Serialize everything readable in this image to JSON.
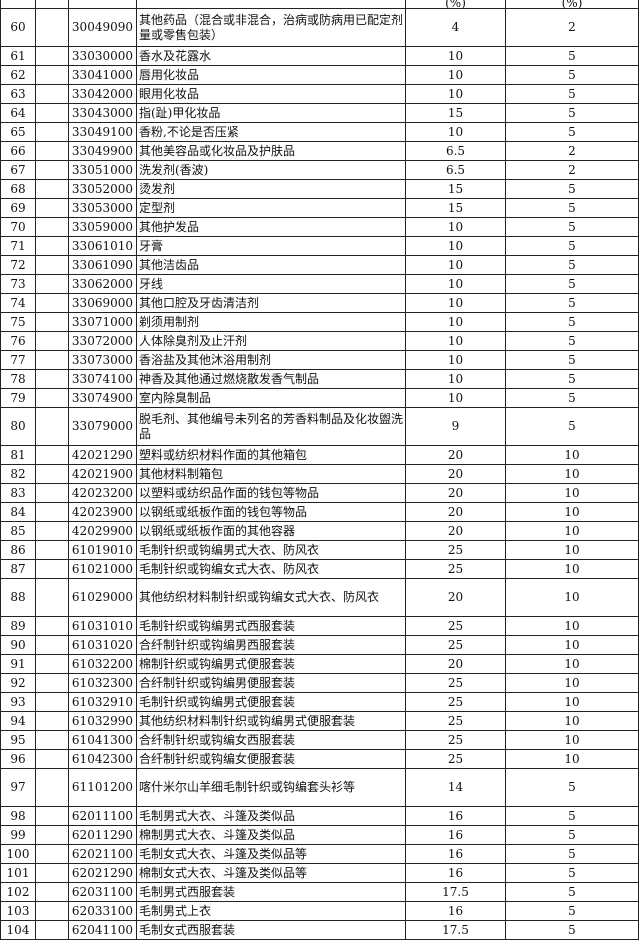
{
  "header": {
    "rate1_unit": "(%)",
    "rate2_unit": "(%)"
  },
  "rows": [
    {
      "idx": "60",
      "code": "30049090",
      "name": "其他药品（混合或非混合，治病或防病用已配定剂量或零售包装）",
      "rate1": "4",
      "rate2": "2",
      "tall": true
    },
    {
      "idx": "61",
      "code": "33030000",
      "name": "香水及花露水",
      "rate1": "10",
      "rate2": "5"
    },
    {
      "idx": "62",
      "code": "33041000",
      "name": "唇用化妆品",
      "rate1": "10",
      "rate2": "5"
    },
    {
      "idx": "63",
      "code": "33042000",
      "name": "眼用化妆品",
      "rate1": "10",
      "rate2": "5"
    },
    {
      "idx": "64",
      "code": "33043000",
      "name": "指(趾)甲化妆品",
      "rate1": "15",
      "rate2": "5"
    },
    {
      "idx": "65",
      "code": "33049100",
      "name": "香粉,不论是否压紧",
      "rate1": "10",
      "rate2": "5"
    },
    {
      "idx": "66",
      "code": "33049900",
      "name": "其他美容品或化妆品及护肤品",
      "rate1": "6.5",
      "rate2": "2"
    },
    {
      "idx": "67",
      "code": "33051000",
      "name": "洗发剂(香波)",
      "rate1": "6.5",
      "rate2": "2"
    },
    {
      "idx": "68",
      "code": "33052000",
      "name": "烫发剂",
      "rate1": "15",
      "rate2": "5"
    },
    {
      "idx": "69",
      "code": "33053000",
      "name": "定型剂",
      "rate1": "15",
      "rate2": "5"
    },
    {
      "idx": "70",
      "code": "33059000",
      "name": "其他护发品",
      "rate1": "10",
      "rate2": "5"
    },
    {
      "idx": "71",
      "code": "33061010",
      "name": "牙膏",
      "rate1": "10",
      "rate2": "5"
    },
    {
      "idx": "72",
      "code": "33061090",
      "name": "其他洁齿品",
      "rate1": "10",
      "rate2": "5"
    },
    {
      "idx": "73",
      "code": "33062000",
      "name": "牙线",
      "rate1": "10",
      "rate2": "5"
    },
    {
      "idx": "74",
      "code": "33069000",
      "name": "其他口腔及牙齿清洁剂",
      "rate1": "10",
      "rate2": "5"
    },
    {
      "idx": "75",
      "code": "33071000",
      "name": "剃须用制剂",
      "rate1": "10",
      "rate2": "5"
    },
    {
      "idx": "76",
      "code": "33072000",
      "name": "人体除臭剂及止汗剂",
      "rate1": "10",
      "rate2": "5"
    },
    {
      "idx": "77",
      "code": "33073000",
      "name": "香浴盐及其他沐浴用制剂",
      "rate1": "10",
      "rate2": "5"
    },
    {
      "idx": "78",
      "code": "33074100",
      "name": "神香及其他通过燃烧散发香气制品",
      "rate1": "10",
      "rate2": "5"
    },
    {
      "idx": "79",
      "code": "33074900",
      "name": "室内除臭制品",
      "rate1": "10",
      "rate2": "5"
    },
    {
      "idx": "80",
      "code": "33079000",
      "name": "脱毛剂、其他编号未列名的芳香料制品及化妆盥洗品",
      "rate1": "9",
      "rate2": "5",
      "tall": true
    },
    {
      "idx": "81",
      "code": "42021290",
      "name": "塑料或纺织材料作面的其他箱包",
      "rate1": "20",
      "rate2": "10"
    },
    {
      "idx": "82",
      "code": "42021900",
      "name": "其他材料制箱包",
      "rate1": "20",
      "rate2": "10"
    },
    {
      "idx": "83",
      "code": "42023200",
      "name": "以塑料或纺织品作面的钱包等物品",
      "rate1": "20",
      "rate2": "10"
    },
    {
      "idx": "84",
      "code": "42023900",
      "name": "以钢纸或纸板作面的钱包等物品",
      "rate1": "20",
      "rate2": "10"
    },
    {
      "idx": "85",
      "code": "42029900",
      "name": "以钢纸或纸板作面的其他容器",
      "rate1": "20",
      "rate2": "10"
    },
    {
      "idx": "86",
      "code": "61019010",
      "name": "毛制针织或钩编男式大衣、防风衣",
      "rate1": "25",
      "rate2": "10"
    },
    {
      "idx": "87",
      "code": "61021000",
      "name": "毛制针织或钩编女式大衣、防风衣",
      "rate1": "25",
      "rate2": "10"
    },
    {
      "idx": "88",
      "code": "61029000",
      "name": "其他纺织材料制针织或钩编女式大衣、防风衣",
      "rate1": "20",
      "rate2": "10",
      "tall": true
    },
    {
      "idx": "89",
      "code": "61031010",
      "name": "毛制针织或钩编男式西服套装",
      "rate1": "25",
      "rate2": "10"
    },
    {
      "idx": "90",
      "code": "61031020",
      "name": "合纤制针织或钩编男西服套装",
      "rate1": "25",
      "rate2": "10"
    },
    {
      "idx": "91",
      "code": "61032200",
      "name": "棉制针织或钩编男式便服套装",
      "rate1": "20",
      "rate2": "10"
    },
    {
      "idx": "92",
      "code": "61032300",
      "name": "合纤制针织或钩编男便服套装",
      "rate1": "25",
      "rate2": "10"
    },
    {
      "idx": "93",
      "code": "61032910",
      "name": "毛制针织或钩编男式便服套装",
      "rate1": "25",
      "rate2": "10"
    },
    {
      "idx": "94",
      "code": "61032990",
      "name": "其他纺织材料制针织或钩编男式便服套装",
      "rate1": "25",
      "rate2": "10"
    },
    {
      "idx": "95",
      "code": "61041300",
      "name": "合纤制针织或钩编女西服套装",
      "rate1": "25",
      "rate2": "10"
    },
    {
      "idx": "96",
      "code": "61042300",
      "name": "合纤制针织或钩编女便服套装",
      "rate1": "25",
      "rate2": "10"
    },
    {
      "idx": "97",
      "code": "61101200",
      "name": "喀什米尔山羊细毛制针织或钩编套头衫等",
      "rate1": "14",
      "rate2": "5",
      "tall": true
    },
    {
      "idx": "98",
      "code": "62011100",
      "name": "毛制男式大衣、斗篷及类似品",
      "rate1": "16",
      "rate2": "5"
    },
    {
      "idx": "99",
      "code": "62011290",
      "name": "棉制男式大衣、斗篷及类似品",
      "rate1": "16",
      "rate2": "5"
    },
    {
      "idx": "100",
      "code": "62021100",
      "name": "毛制女式大衣、斗篷及类似品等",
      "rate1": "16",
      "rate2": "5"
    },
    {
      "idx": "101",
      "code": "62021290",
      "name": "棉制女式大衣、斗篷及类似品等",
      "rate1": "16",
      "rate2": "5"
    },
    {
      "idx": "102",
      "code": "62031100",
      "name": "毛制男式西服套装",
      "rate1": "17.5",
      "rate2": "5"
    },
    {
      "idx": "103",
      "code": "62033100",
      "name": "毛制男式上衣",
      "rate1": "16",
      "rate2": "5"
    },
    {
      "idx": "104",
      "code": "62041100",
      "name": "毛制女式西服套装",
      "rate1": "17.5",
      "rate2": "5"
    }
  ]
}
